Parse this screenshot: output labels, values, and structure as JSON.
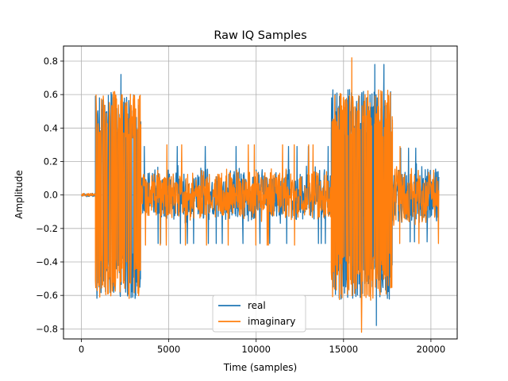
{
  "chart_data": {
    "type": "line",
    "title": "Raw IQ Samples",
    "xlabel": "Time (samples)",
    "ylabel": "Amplitude",
    "xlim": [
      -1024,
      21504
    ],
    "ylim": [
      -0.86,
      0.89
    ],
    "xticks": [
      0,
      5000,
      10000,
      15000,
      20000
    ],
    "yticks": [
      -0.8,
      -0.6,
      -0.4,
      -0.2,
      0.0,
      0.2,
      0.4,
      0.6,
      0.8
    ],
    "grid": true,
    "legend_position": "lower center",
    "series": [
      {
        "name": "real",
        "color": "#1f77b4",
        "segments": [
          {
            "x_start": 0,
            "x_end": 800,
            "amplitude": 0.01,
            "peak": 0.01
          },
          {
            "x_start": 800,
            "x_end": 3400,
            "amplitude": 0.62,
            "peak": 0.72
          },
          {
            "x_start": 3400,
            "x_end": 14300,
            "amplitude": 0.18,
            "peak": 0.29
          },
          {
            "x_start": 14300,
            "x_end": 17800,
            "amplitude": 0.63,
            "peak": 0.78
          },
          {
            "x_start": 17800,
            "x_end": 20450,
            "amplitude": 0.2,
            "peak": 0.28
          }
        ]
      },
      {
        "name": "imaginary",
        "color": "#ff7f0e",
        "segments": [
          {
            "x_start": 0,
            "x_end": 800,
            "amplitude": 0.01,
            "peak": 0.01
          },
          {
            "x_start": 800,
            "x_end": 3400,
            "amplitude": 0.62,
            "peak": 0.66
          },
          {
            "x_start": 3400,
            "x_end": 14300,
            "amplitude": 0.17,
            "peak": 0.3
          },
          {
            "x_start": 14300,
            "x_end": 17800,
            "amplitude": 0.63,
            "peak": 0.82
          },
          {
            "x_start": 17800,
            "x_end": 20450,
            "amplitude": 0.19,
            "peak": 0.29
          }
        ]
      }
    ]
  }
}
